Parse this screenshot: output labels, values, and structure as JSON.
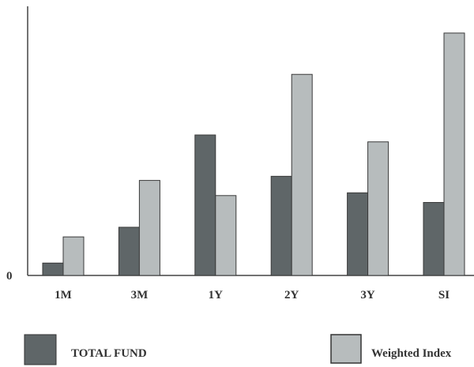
{
  "chart_data": {
    "type": "bar",
    "title": "",
    "xlabel": "",
    "ylabel": "",
    "categories": [
      "1M",
      "3M",
      "1Y",
      "2Y",
      "3Y",
      "SI"
    ],
    "series": [
      {
        "name": "TOTAL FUND",
        "color": "#5f6668",
        "values": [
          0.45,
          1.75,
          5.1,
          3.6,
          3.0,
          2.65
        ]
      },
      {
        "name": "Weighted Index",
        "color": "#b7bcbd",
        "values": [
          1.4,
          3.45,
          2.9,
          7.3,
          4.85,
          8.8
        ]
      }
    ],
    "ylim": [
      0,
      10
    ],
    "yticks": [
      "0"
    ],
    "grid": false,
    "legend": "bottom"
  }
}
